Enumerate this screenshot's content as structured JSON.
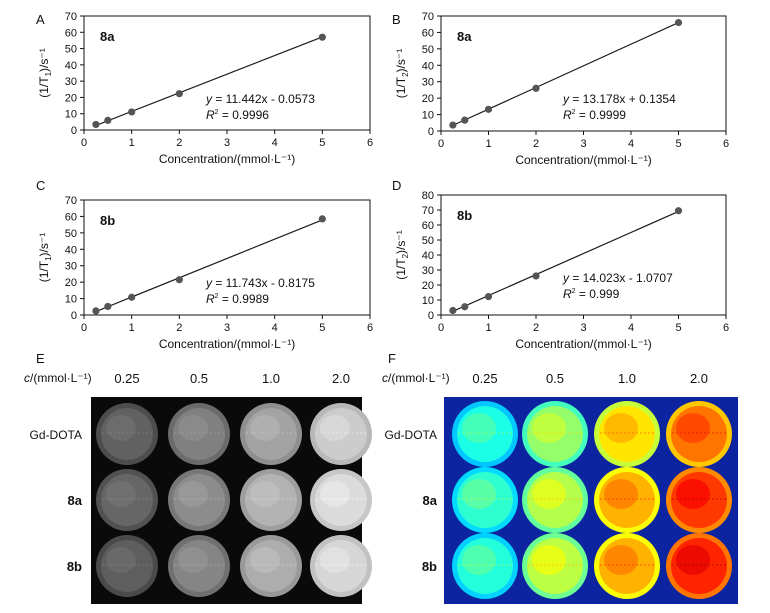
{
  "colors": {
    "point": "#555555",
    "line": "#1a1a1a",
    "axis": "#111111"
  },
  "chart_data": [
    {
      "type": "scatter",
      "panel": "A",
      "compound": "8a",
      "xlabel": "Concentration/(mmol·L⁻¹)",
      "ylabel_pre": "(1/T",
      "ylabel_sub": "1",
      "ylabel_post": ")/s⁻¹",
      "xlim": [
        0,
        6
      ],
      "ylim": [
        0,
        70
      ],
      "xticks": [
        0,
        1,
        2,
        3,
        4,
        5,
        6
      ],
      "yticks": [
        0,
        10,
        20,
        30,
        40,
        50,
        60,
        70
      ],
      "x": [
        0.25,
        0.5,
        1,
        2,
        5
      ],
      "y": [
        3.4,
        5.9,
        11.1,
        22.3,
        57.0
      ],
      "fit": {
        "slope": 11.442,
        "intercept": -0.0573
      },
      "equation_text": "= 11.442x - 0.0573",
      "r2_text": "= 0.9996",
      "grid": false
    },
    {
      "type": "scatter",
      "panel": "B",
      "compound": "8a",
      "xlabel": "Concentration/(mmol·L⁻¹)",
      "ylabel_pre": "(1/T",
      "ylabel_sub": "2",
      "ylabel_post": ")/s⁻¹",
      "xlim": [
        0,
        6
      ],
      "ylim": [
        0,
        70
      ],
      "xticks": [
        0,
        1,
        2,
        3,
        4,
        5,
        6
      ],
      "yticks": [
        0,
        10,
        20,
        30,
        40,
        50,
        60,
        70
      ],
      "x": [
        0.25,
        0.5,
        1,
        2,
        5
      ],
      "y": [
        3.6,
        6.6,
        13.2,
        26.0,
        66.0
      ],
      "fit": {
        "slope": 13.178,
        "intercept": 0.1354
      },
      "equation_text": "= 13.178x + 0.1354",
      "r2_text": "= 0.9999",
      "grid": false
    },
    {
      "type": "scatter",
      "panel": "C",
      "compound": "8b",
      "xlabel": "Concentration/(mmol·L⁻¹)",
      "ylabel_pre": "(1/T",
      "ylabel_sub": "1",
      "ylabel_post": ")/s⁻¹",
      "xlim": [
        0,
        6
      ],
      "ylim": [
        0,
        70
      ],
      "xticks": [
        0,
        1,
        2,
        3,
        4,
        5,
        6
      ],
      "yticks": [
        0,
        10,
        20,
        30,
        40,
        50,
        60,
        70
      ],
      "x": [
        0.25,
        0.5,
        1,
        2,
        5
      ],
      "y": [
        2.5,
        5.2,
        10.8,
        21.5,
        58.5
      ],
      "fit": {
        "slope": 11.743,
        "intercept": -0.8175
      },
      "equation_text": "= 11.743x - 0.8175",
      "r2_text": "= 0.9989",
      "grid": false
    },
    {
      "type": "scatter",
      "panel": "D",
      "compound": "8b",
      "xlabel": "Concentration/(mmol·L⁻¹)",
      "ylabel_pre": "(1/T",
      "ylabel_sub": "2",
      "ylabel_post": ")/s⁻¹",
      "xlim": [
        0,
        6
      ],
      "ylim": [
        0,
        80
      ],
      "xticks": [
        0,
        1,
        2,
        3,
        4,
        5,
        6
      ],
      "yticks": [
        0,
        10,
        20,
        30,
        40,
        50,
        60,
        70,
        80
      ],
      "x": [
        0.25,
        0.5,
        1,
        2,
        5
      ],
      "y": [
        3.0,
        5.5,
        12.3,
        26.0,
        69.5
      ],
      "fit": {
        "slope": 14.023,
        "intercept": -1.0707
      },
      "equation_text": "= 14.023x - 1.0707",
      "r2_text": "= 0.999",
      "grid": false
    },
    {
      "type": "heatmap",
      "panel": "E",
      "style": "grayscale",
      "conc_label": "c/(mmol·L⁻¹)",
      "columns": [
        "0.25",
        "0.5",
        "1.0",
        "2.0"
      ],
      "rows": [
        "Gd-DOTA",
        "8a",
        "8b"
      ],
      "intensity": [
        [
          0.38,
          0.5,
          0.64,
          0.8
        ],
        [
          0.4,
          0.55,
          0.7,
          0.86
        ],
        [
          0.37,
          0.52,
          0.68,
          0.84
        ]
      ]
    },
    {
      "type": "heatmap",
      "panel": "F",
      "style": "jet",
      "conc_label": "c/(mmol·L⁻¹)",
      "columns": [
        "0.25",
        "0.5",
        "1.0",
        "2.0"
      ],
      "rows": [
        "Gd-DOTA",
        "8a",
        "8b"
      ],
      "intensity": [
        [
          0.4,
          0.52,
          0.65,
          0.76
        ],
        [
          0.42,
          0.55,
          0.7,
          0.82
        ],
        [
          0.41,
          0.56,
          0.7,
          0.84
        ]
      ]
    }
  ]
}
